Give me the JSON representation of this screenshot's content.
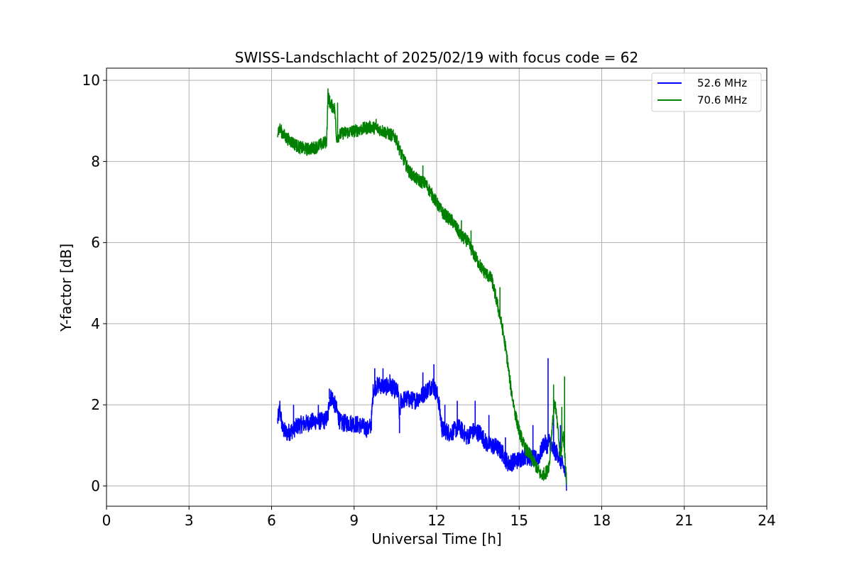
{
  "chart_data": {
    "type": "line",
    "title": "SWISS-Landschlacht of 2025/02/19 with focus code = 62",
    "xlabel": "Universal Time [h]",
    "ylabel": "Y-factor [dB]",
    "xlim": [
      0,
      24
    ],
    "ylim": [
      -0.5,
      10.3
    ],
    "xticks": [
      0,
      3,
      6,
      9,
      12,
      15,
      18,
      21,
      24
    ],
    "xtick_labels": [
      "0",
      "3",
      "6",
      "9",
      "12",
      "15",
      "18",
      "21",
      "24"
    ],
    "yticks": [
      0,
      2,
      4,
      6,
      8,
      10
    ],
    "ytick_labels": [
      "0",
      "2",
      "4",
      "6",
      "8",
      "10"
    ],
    "grid": true,
    "legend_position": "top-right",
    "series": [
      {
        "name": "52.6 MHz",
        "color": "#0000ff",
        "x": [
          6.22,
          6.3,
          6.4,
          6.55,
          6.7,
          7.0,
          7.3,
          7.6,
          7.9,
          8.05,
          8.1,
          8.2,
          8.35,
          8.5,
          8.9,
          9.2,
          9.5,
          9.62,
          9.7,
          9.9,
          10.1,
          10.35,
          10.6,
          10.65,
          10.7,
          10.9,
          11.2,
          11.5,
          11.7,
          11.85,
          12.05,
          12.2,
          12.5,
          12.8,
          13.0,
          13.1,
          13.3,
          13.6,
          13.8,
          14.0,
          14.2,
          14.4,
          14.6,
          14.8,
          15.0,
          15.2,
          15.4,
          15.6,
          15.75,
          15.9,
          16.05,
          16.1,
          16.2,
          16.4,
          16.55,
          16.65,
          16.72
        ],
        "y": [
          1.6,
          1.9,
          1.4,
          1.3,
          1.35,
          1.5,
          1.55,
          1.6,
          1.6,
          1.7,
          2.15,
          2.2,
          1.9,
          1.55,
          1.55,
          1.5,
          1.4,
          1.5,
          2.4,
          2.5,
          2.45,
          2.45,
          2.3,
          1.7,
          2.1,
          2.15,
          2.1,
          2.25,
          2.4,
          2.5,
          2.2,
          1.4,
          1.3,
          1.45,
          1.3,
          1.2,
          1.35,
          1.3,
          1.05,
          1.0,
          0.95,
          0.8,
          0.55,
          0.6,
          0.65,
          0.75,
          0.7,
          0.65,
          0.75,
          1.05,
          1.0,
          1.15,
          0.9,
          0.8,
          0.55,
          0.4,
          0.1
        ],
        "spikes": [
          [
            6.3,
            2.1
          ],
          [
            6.8,
            2.0
          ],
          [
            7.7,
            2.0
          ],
          [
            8.1,
            2.4
          ],
          [
            9.75,
            2.9
          ],
          [
            10.05,
            2.9
          ],
          [
            10.3,
            2.75
          ],
          [
            10.65,
            1.3
          ],
          [
            11.5,
            2.8
          ],
          [
            11.9,
            3.0
          ],
          [
            12.3,
            2.0
          ],
          [
            12.75,
            2.1
          ],
          [
            13.4,
            2.1
          ],
          [
            13.9,
            1.75
          ],
          [
            14.5,
            1.2
          ],
          [
            15.5,
            1.5
          ],
          [
            16.05,
            3.15
          ],
          [
            16.25,
            1.8
          ],
          [
            16.5,
            1.5
          ]
        ]
      },
      {
        "name": "70.6 MHz",
        "color": "#008000",
        "x": [
          6.22,
          6.3,
          6.5,
          6.7,
          7.0,
          7.3,
          7.6,
          7.9,
          8.0,
          8.05,
          8.15,
          8.3,
          8.35,
          8.6,
          9.0,
          9.3,
          9.6,
          9.9,
          10.2,
          10.5,
          10.7,
          11.0,
          11.3,
          11.6,
          11.9,
          12.2,
          12.6,
          12.9,
          13.1,
          13.4,
          13.7,
          14.0,
          14.2,
          14.4,
          14.55,
          14.7,
          14.85,
          15.0,
          15.2,
          15.4,
          15.6,
          15.8,
          16.0,
          16.1,
          16.2,
          16.3,
          16.4,
          16.5,
          16.6,
          16.7,
          16.72
        ],
        "y": [
          8.75,
          8.8,
          8.6,
          8.5,
          8.35,
          8.3,
          8.35,
          8.45,
          8.5,
          9.6,
          9.4,
          9.3,
          8.6,
          8.7,
          8.75,
          8.8,
          8.85,
          8.8,
          8.7,
          8.6,
          8.2,
          7.75,
          7.55,
          7.45,
          7.1,
          6.75,
          6.5,
          6.15,
          6.05,
          5.65,
          5.3,
          5.1,
          4.5,
          3.85,
          3.2,
          2.4,
          1.8,
          1.35,
          0.95,
          0.75,
          0.5,
          0.25,
          0.35,
          0.55,
          1.5,
          2.1,
          1.4,
          0.7,
          1.3,
          0.4,
          0.05
        ],
        "spikes": [
          [
            8.05,
            9.8
          ],
          [
            8.4,
            9.45
          ],
          [
            9.8,
            9.05
          ],
          [
            11.5,
            7.9
          ],
          [
            12.55,
            6.7
          ],
          [
            12.9,
            6.55
          ],
          [
            13.25,
            6.3
          ],
          [
            14.3,
            4.9
          ],
          [
            16.25,
            2.5
          ],
          [
            16.55,
            1.95
          ],
          [
            16.65,
            2.7
          ]
        ]
      }
    ]
  }
}
